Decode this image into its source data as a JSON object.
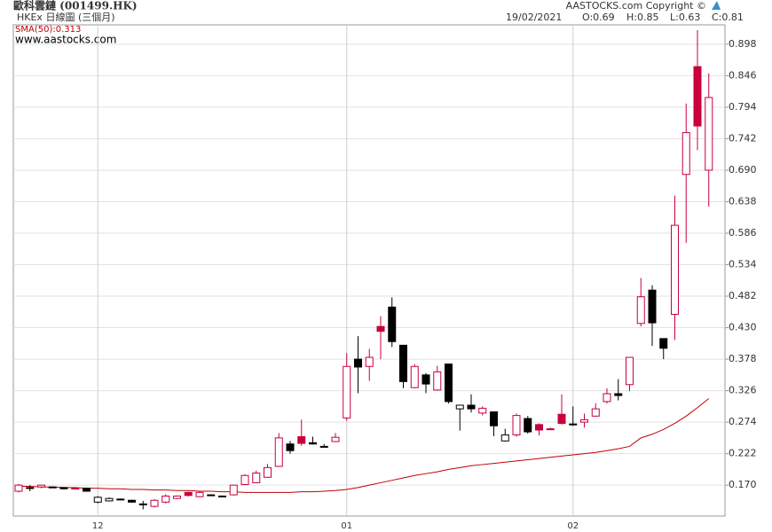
{
  "header": {
    "title": "歐科雲鏈 (001499.HK)",
    "subtitle": "HKEx 日線圖 (三個月)",
    "website": "www.aastocks.com",
    "copyright": "AASTOCKS.com Copyright ©",
    "date": "19/02/2021",
    "quote": [
      {
        "value": 0.69,
        "label": "O:0.69"
      },
      {
        "value": 0.85,
        "label": "H:0.85"
      },
      {
        "value": 0.63,
        "label": "L:0.63"
      },
      {
        "value": 0.81,
        "label": "C:0.81"
      }
    ]
  },
  "chart_data": {
    "type": "candlestick",
    "up_color": "#c8003c",
    "down_color": "#000000",
    "grid": true,
    "ylim": [
      0.119,
      0.93
    ],
    "yticks": [
      {
        "value": 0.17,
        "label": "0.170"
      },
      0.222,
      0.274,
      0.326,
      0.378,
      {
        "value": 0.43,
        "label": "0.430"
      },
      0.482,
      0.534,
      0.586,
      0.638,
      {
        "value": 0.69,
        "label": "0.690"
      },
      0.742,
      0.794,
      0.846,
      0.898
    ],
    "categories": [
      null,
      null,
      null,
      null,
      null,
      null,
      null,
      "12",
      null,
      null,
      null,
      null,
      null,
      null,
      null,
      null,
      null,
      null,
      null,
      null,
      null,
      null,
      null,
      null,
      null,
      null,
      null,
      null,
      null,
      "01",
      null,
      null,
      null,
      null,
      null,
      null,
      null,
      null,
      null,
      null,
      null,
      null,
      null,
      null,
      null,
      null,
      null,
      null,
      null,
      "02",
      null,
      null,
      null,
      null,
      null,
      null,
      null,
      null,
      null,
      null,
      null,
      null
    ],
    "open": [
      0.16,
      0.166,
      0.167,
      0.167,
      0.166,
      0.165,
      0.165,
      0.142,
      0.144,
      0.147,
      0.145,
      0.139,
      0.135,
      0.142,
      0.148,
      0.158,
      0.151,
      0.154,
      0.152,
      0.154,
      0.171,
      0.174,
      0.183,
      0.201,
      0.238,
      0.25,
      0.24,
      0.234,
      0.242,
      0.281,
      0.378,
      0.366,
      0.432,
      0.464,
      0.401,
      0.331,
      0.352,
      0.327,
      0.37,
      0.296,
      0.302,
      0.289,
      0.291,
      0.243,
      0.253,
      0.28,
      0.27,
      0.263,
      0.287,
      0.271,
      0.274,
      0.284,
      0.308,
      0.321,
      0.336,
      0.437,
      0.492,
      0.412,
      0.452,
      0.683,
      0.861,
      0.69
    ],
    "high": [
      0.172,
      0.17,
      0.171,
      0.168,
      0.167,
      0.166,
      0.166,
      0.152,
      0.15,
      0.148,
      0.146,
      0.144,
      0.147,
      0.155,
      0.153,
      0.159,
      0.159,
      0.155,
      0.153,
      0.171,
      0.188,
      0.194,
      0.205,
      0.256,
      0.243,
      0.278,
      0.25,
      0.238,
      0.256,
      0.388,
      0.416,
      0.395,
      0.449,
      0.48,
      0.401,
      0.37,
      0.355,
      0.367,
      0.37,
      0.302,
      0.32,
      0.3,
      0.291,
      0.263,
      0.288,
      0.284,
      0.272,
      0.265,
      0.32,
      0.3,
      0.288,
      0.305,
      0.33,
      0.345,
      0.381,
      0.512,
      0.5,
      0.412,
      0.648,
      0.8,
      0.921,
      0.85
    ],
    "low": [
      0.158,
      0.16,
      0.165,
      0.166,
      0.163,
      0.163,
      0.159,
      0.14,
      0.143,
      0.146,
      0.141,
      0.13,
      0.133,
      0.14,
      0.147,
      0.151,
      0.15,
      0.153,
      0.151,
      0.153,
      0.17,
      0.173,
      0.182,
      0.2,
      0.222,
      0.235,
      0.237,
      0.233,
      0.241,
      0.276,
      0.322,
      0.342,
      0.378,
      0.398,
      0.33,
      0.33,
      0.322,
      0.326,
      0.305,
      0.26,
      0.29,
      0.285,
      0.251,
      0.242,
      0.25,
      0.255,
      0.252,
      0.261,
      0.27,
      0.268,
      0.265,
      0.283,
      0.305,
      0.31,
      0.325,
      0.432,
      0.4,
      0.378,
      0.41,
      0.57,
      0.723,
      0.63
    ],
    "close": [
      0.17,
      0.165,
      0.17,
      0.167,
      0.164,
      0.165,
      0.16,
      0.15,
      0.148,
      0.147,
      0.142,
      0.139,
      0.145,
      0.152,
      0.152,
      0.153,
      0.158,
      0.154,
      0.152,
      0.17,
      0.186,
      0.19,
      0.199,
      0.248,
      0.227,
      0.239,
      0.238,
      0.234,
      0.249,
      0.366,
      0.365,
      0.381,
      0.424,
      0.407,
      0.341,
      0.366,
      0.337,
      0.357,
      0.308,
      0.302,
      0.296,
      0.297,
      0.268,
      0.253,
      0.285,
      0.258,
      0.261,
      0.262,
      0.272,
      0.27,
      0.278,
      0.296,
      0.321,
      0.318,
      0.381,
      0.481,
      0.438,
      0.396,
      0.599,
      0.752,
      0.763,
      0.81
    ],
    "sma": {
      "label": "SMA(50):0.313",
      "color": "#c00000",
      "values": [
        0.168,
        0.168,
        0.167,
        0.167,
        0.166,
        0.166,
        0.165,
        0.165,
        0.164,
        0.164,
        0.163,
        0.163,
        0.162,
        0.162,
        0.161,
        0.161,
        0.16,
        0.16,
        0.159,
        0.159,
        0.158,
        0.158,
        0.158,
        0.158,
        0.158,
        0.159,
        0.159,
        0.16,
        0.161,
        0.163,
        0.166,
        0.17,
        0.174,
        0.178,
        0.182,
        0.186,
        0.189,
        0.192,
        0.196,
        0.199,
        0.202,
        0.204,
        0.206,
        0.208,
        0.21,
        0.212,
        0.214,
        0.216,
        0.218,
        0.22,
        0.222,
        0.224,
        0.227,
        0.23,
        0.234,
        0.248,
        0.254,
        0.262,
        0.272,
        0.284,
        0.298,
        0.313
      ]
    }
  }
}
